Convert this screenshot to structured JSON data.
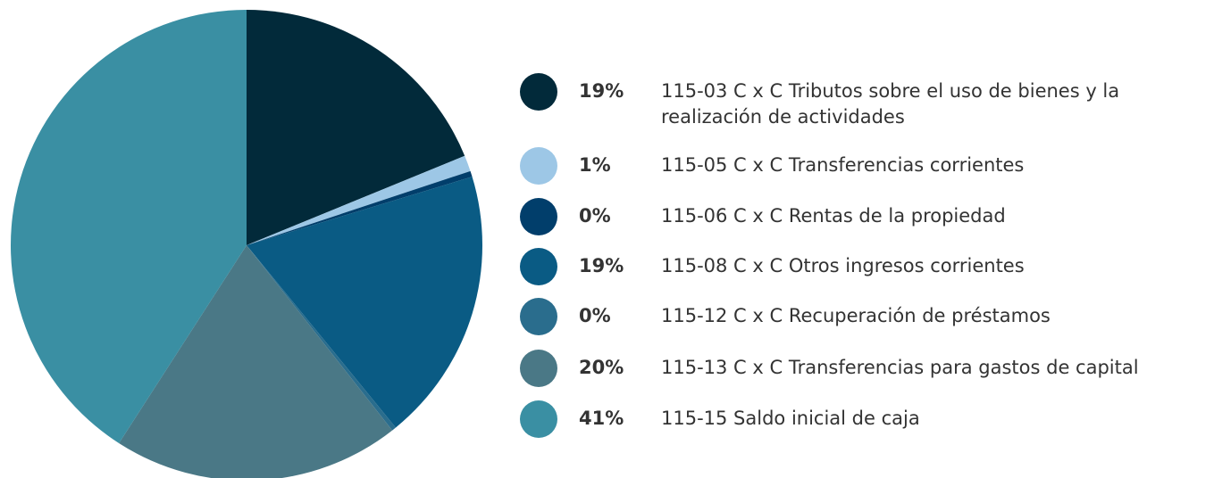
{
  "chart_data": {
    "type": "pie",
    "categories": [
      "115-03 C x C Tributos sobre el uso de bienes y la realización de actividades",
      "115-05 C x C Transferencias corrientes",
      "115-06 C x C Rentas de la propiedad",
      "115-08 C x C Otros ingresos corrientes",
      "115-12 C x C Recuperación de préstamos",
      "115-13 C x C Transferencias para gastos de capital",
      "115-15 Saldo inicial de caja"
    ],
    "values": [
      18.8,
      1.1,
      0.4,
      18.8,
      0.3,
      19.7,
      40.9
    ],
    "value_labels": [
      "19%",
      "1%",
      "0%",
      "19%",
      "0%",
      "20%",
      "41%"
    ],
    "colors": [
      "#022a3a",
      "#9dc7e6",
      "#013e6b",
      "#0a5b84",
      "#2a6d8d",
      "#4a7886",
      "#3a8fa3"
    ]
  }
}
